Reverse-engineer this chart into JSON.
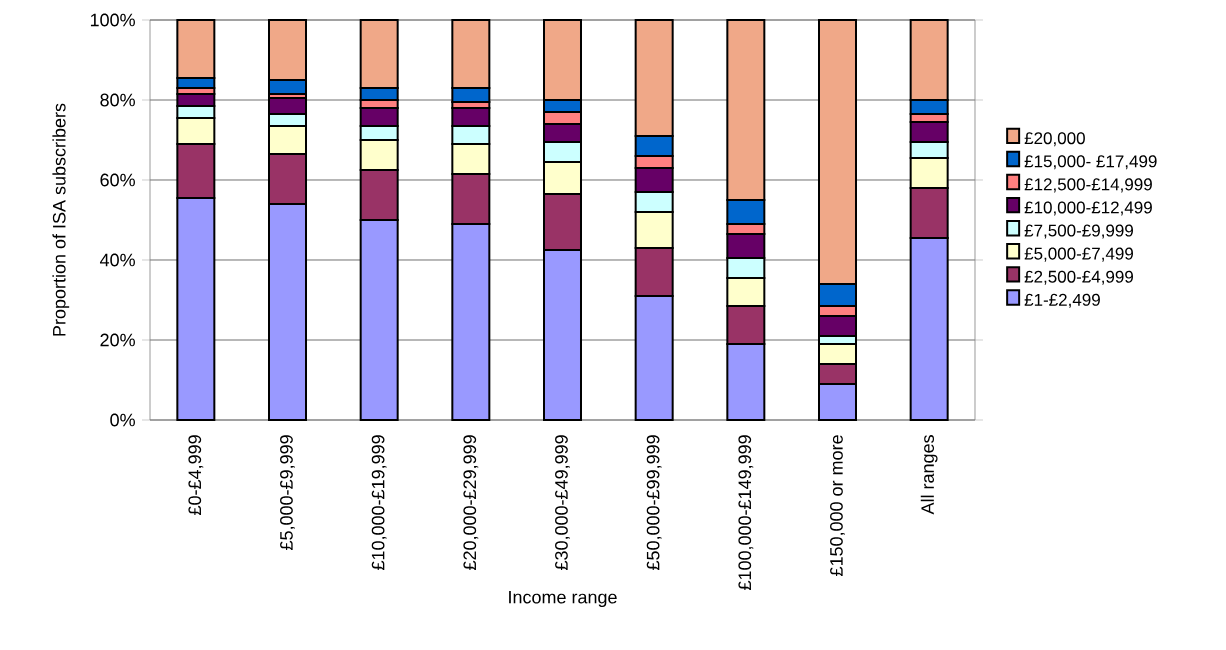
{
  "chart_data": {
    "type": "bar",
    "stacked": true,
    "xlabel": "Income range",
    "ylabel": "Proportion of ISA subscribers",
    "categories": [
      "£0-£4,999",
      "£5,000-£9,999",
      "£10,000-£19,999",
      "£20,000-£29,999",
      "£30,000-£49,999",
      "£50,000-£99,999",
      "£100,000-£149,999",
      "£150,000 or more",
      "All ranges"
    ],
    "series": [
      {
        "name": "£1-£2,499",
        "color": "#9999ff",
        "values": [
          55.5,
          54,
          50,
          49,
          42.5,
          31,
          19,
          9,
          45.5
        ]
      },
      {
        "name": "£2,500-£4,999",
        "color": "#993366",
        "values": [
          13.5,
          12.5,
          12.5,
          12.5,
          14,
          12,
          9.5,
          5,
          12.5
        ]
      },
      {
        "name": "£5,000-£7,499",
        "color": "#ffffcc",
        "values": [
          6.5,
          7,
          7.5,
          7.5,
          8,
          9,
          7,
          5,
          7.5
        ]
      },
      {
        "name": "£7,500-£9,999",
        "color": "#ccffff",
        "values": [
          3,
          3,
          3.5,
          4.5,
          5,
          5,
          5,
          2,
          4
        ]
      },
      {
        "name": "£10,000-£12,499",
        "color": "#660066",
        "values": [
          3,
          4,
          4.5,
          4.5,
          4.5,
          6,
          6,
          5,
          5
        ]
      },
      {
        "name": "£12,500-£14,999",
        "color": "#ff8080",
        "values": [
          1.5,
          1,
          2,
          1.5,
          3,
          3,
          2.5,
          2.5,
          2
        ]
      },
      {
        "name": "£15,000- £17,499",
        "color": "#0066cc",
        "values": [
          2.5,
          3.5,
          3,
          3.5,
          3,
          5,
          6,
          5.5,
          3.5
        ]
      },
      {
        "name": "£20,000",
        "color": "#f0a888",
        "values": [
          14.5,
          15,
          17,
          17,
          20,
          29,
          45,
          66,
          20
        ]
      }
    ],
    "ylim": [
      0,
      100
    ],
    "yticks": [
      {
        "value": 0,
        "label": "0%"
      },
      {
        "value": 20,
        "label": "20%"
      },
      {
        "value": 40,
        "label": "40%"
      },
      {
        "value": 60,
        "label": "60%"
      },
      {
        "value": 80,
        "label": "80%"
      },
      {
        "value": 100,
        "label": "100%"
      }
    ],
    "grid": "y",
    "legend": "right"
  }
}
